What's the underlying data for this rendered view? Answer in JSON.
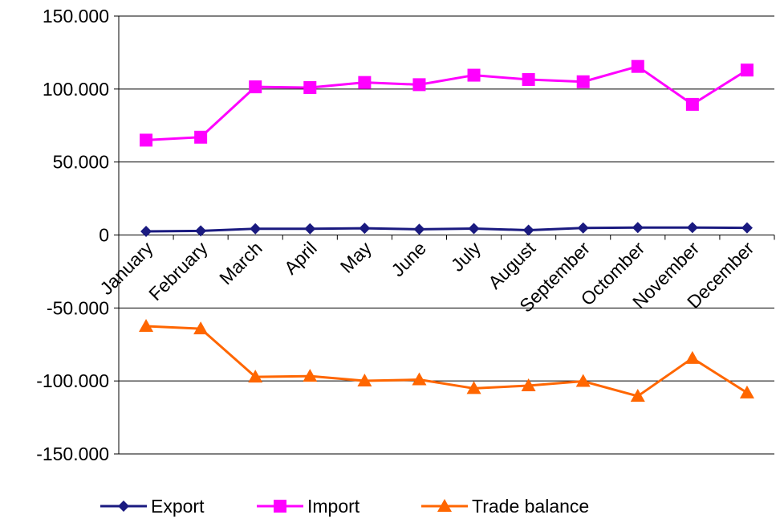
{
  "chart_data": {
    "type": "line",
    "title": "",
    "xlabel": "",
    "ylabel": "",
    "categories": [
      "January",
      "February",
      "March",
      "April",
      "May",
      "June",
      "July",
      "August",
      "September",
      "Octomber",
      "November",
      "December"
    ],
    "ylim": [
      -150000,
      150000
    ],
    "yticks": [
      150000,
      100000,
      50000,
      0,
      -50000,
      -100000,
      -150000
    ],
    "ytick_labels": [
      "150.000",
      "100.000",
      "50.000",
      "0",
      "-50.000",
      "-100.000",
      "-150.000"
    ],
    "grid": true,
    "legend_position": "bottom",
    "series": [
      {
        "name": "Export",
        "color": "#1a1a80",
        "marker": "diamond",
        "values": [
          2500,
          2800,
          4300,
          4300,
          4600,
          3900,
          4400,
          3300,
          4800,
          5100,
          5100,
          4900
        ]
      },
      {
        "name": "Import",
        "color": "#ff00ff",
        "marker": "square",
        "values": [
          65000,
          67000,
          101500,
          101000,
          104500,
          103000,
          109500,
          106500,
          105000,
          115500,
          89500,
          113000
        ]
      },
      {
        "name": "Trade balance",
        "color": "#ff6600",
        "marker": "triangle",
        "values": [
          -62500,
          -64200,
          -97200,
          -96700,
          -99900,
          -99100,
          -105100,
          -103200,
          -100200,
          -110400,
          -84400,
          -108100
        ]
      }
    ]
  }
}
